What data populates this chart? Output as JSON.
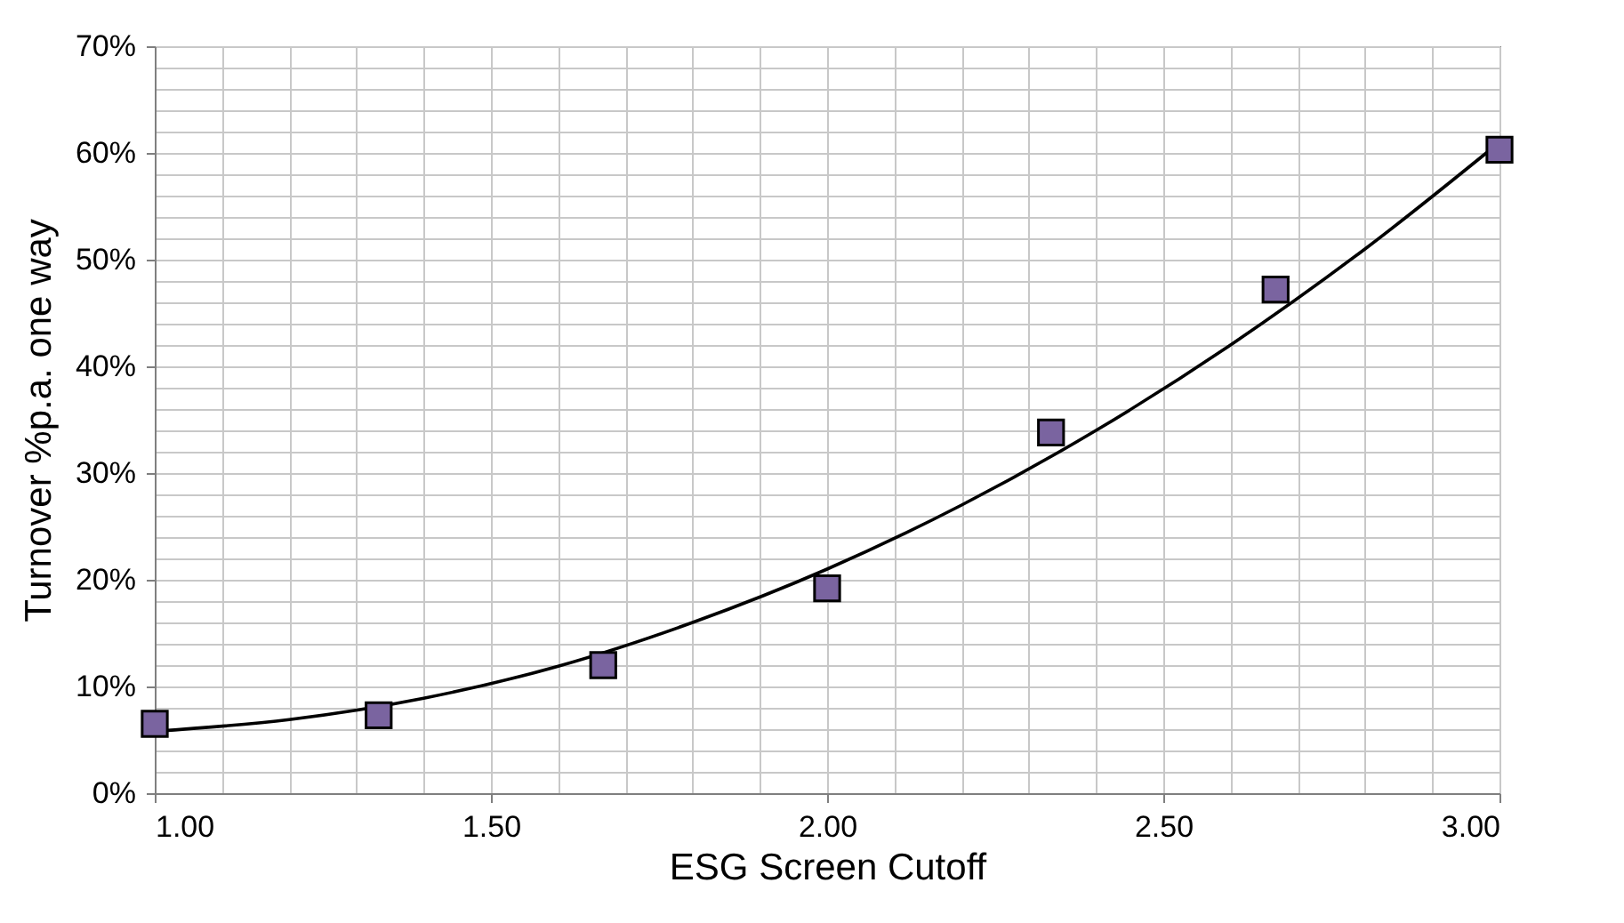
{
  "chart_data": {
    "type": "scatter",
    "xlabel": "ESG Screen Cutoff",
    "ylabel": "Turnover %p.a. one way",
    "xlim": [
      1,
      3
    ],
    "xticks": [
      {
        "value": 1,
        "label": "1.00"
      },
      {
        "value": 1.5,
        "label": "1.50"
      },
      {
        "value": 2,
        "label": "2.00"
      },
      {
        "value": 2.5,
        "label": "2.50"
      },
      {
        "value": 3,
        "label": "3.00"
      }
    ],
    "ylim": [
      0,
      70
    ],
    "yticks": [
      {
        "value": 0,
        "label": "0%"
      },
      {
        "value": 10,
        "label": "10%"
      },
      {
        "value": 20,
        "label": "20%"
      },
      {
        "value": 30,
        "label": "30%"
      },
      {
        "value": 40,
        "label": "40%"
      },
      {
        "value": 50,
        "label": "50%"
      },
      {
        "value": 60,
        "label": "60%"
      },
      {
        "value": 70,
        "label": "70%"
      }
    ],
    "grid": true,
    "marker": "square",
    "series": [
      {
        "color": "#7a64a0",
        "x": [
          1,
          1.333,
          1.667,
          2,
          2.333,
          2.667,
          3
        ],
        "values": [
          6.5,
          7.3,
          12,
          19.2,
          33.8,
          47.2,
          60.3
        ]
      },
      {
        "type": "line",
        "marker": "none",
        "color": "#000000",
        "x": [
          1,
          1.2,
          1.4,
          1.6,
          1.8,
          2,
          2.2,
          2.4,
          2.6,
          2.8,
          3
        ],
        "values": [
          5.8,
          6.9,
          8.9,
          11.9,
          16,
          21,
          27,
          34,
          42,
          51,
          61
        ]
      }
    ]
  }
}
